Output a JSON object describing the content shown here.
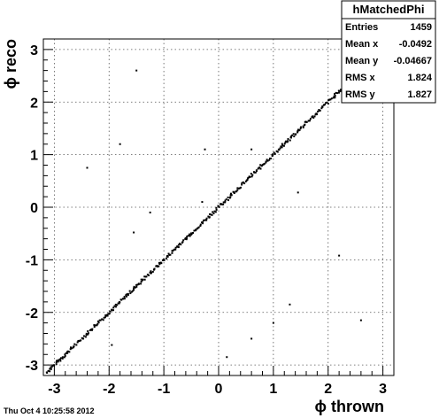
{
  "timestamp": "Thu Oct  4 10:25:58 2012",
  "chart_data": {
    "type": "scatter",
    "xlabel": "ϕ thrown",
    "ylabel": "ϕ reco",
    "xlim": [
      -3.2,
      3.2
    ],
    "ylim": [
      -3.2,
      3.2
    ],
    "grid": true,
    "xticks": [
      {
        "v": -3,
        "label": "-3"
      },
      {
        "v": -2,
        "label": "-2"
      },
      {
        "v": -1,
        "label": "-1"
      },
      {
        "v": 0,
        "label": "0"
      },
      {
        "v": 1,
        "label": "1"
      },
      {
        "v": 2,
        "label": "2"
      },
      {
        "v": 3,
        "label": "3"
      }
    ],
    "yticks": [
      {
        "v": -3,
        "label": "-3"
      },
      {
        "v": -2,
        "label": "-2"
      },
      {
        "v": -1,
        "label": "-1"
      },
      {
        "v": 0,
        "label": "0"
      },
      {
        "v": 1,
        "label": "1"
      },
      {
        "v": 2,
        "label": "2"
      },
      {
        "v": 3,
        "label": "3"
      }
    ],
    "diagonal": {
      "x_start": -3.14,
      "x_end": 2.5,
      "slope": 1.0,
      "intercept": 0.0,
      "count": 380
    },
    "outliers": [
      {
        "x": -1.5,
        "y": 2.6
      },
      {
        "x": -1.8,
        "y": 1.2
      },
      {
        "x": -2.4,
        "y": 0.75
      },
      {
        "x": -1.25,
        "y": -0.1
      },
      {
        "x": -0.25,
        "y": 1.1
      },
      {
        "x": 0.6,
        "y": 1.1
      },
      {
        "x": 1.45,
        "y": 0.28
      },
      {
        "x": 1.0,
        "y": -2.2
      },
      {
        "x": 1.3,
        "y": -1.85
      },
      {
        "x": 0.6,
        "y": -2.5
      },
      {
        "x": 0.15,
        "y": -2.85
      },
      {
        "x": 2.2,
        "y": -0.92
      },
      {
        "x": 2.6,
        "y": -2.15
      },
      {
        "x": -1.95,
        "y": -2.62
      },
      {
        "x": -1.55,
        "y": -0.48
      },
      {
        "x": -0.3,
        "y": 0.1
      }
    ],
    "stats": {
      "title": "hMatchedPhi",
      "rows": [
        {
          "label": "Entries",
          "value": "1459"
        },
        {
          "label": "Mean x",
          "value": "-0.0492"
        },
        {
          "label": "Mean y",
          "value": "-0.04667"
        },
        {
          "label": "RMS x",
          "value": "1.824"
        },
        {
          "label": "RMS y",
          "value": "1.827"
        }
      ]
    }
  }
}
